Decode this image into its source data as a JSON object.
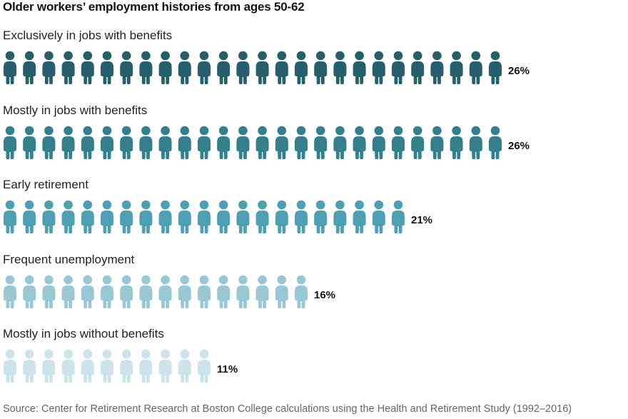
{
  "title": "Older workers’ employment histories from ages 50-62",
  "source": "Source: Center for Retirement Research at Boston College calculations using the Health and Retirement Study (1992–2016)",
  "chart_data": {
    "type": "pictograph",
    "title": "Older workers’ employment histories from ages 50-62",
    "categories": [
      "Exclusively in jobs with benefits",
      "Mostly in jobs with benefits",
      "Early retirement",
      "Frequent unemployment",
      "Mostly in jobs without benefits"
    ],
    "values": [
      26,
      26,
      21,
      16,
      11
    ],
    "value_labels": [
      "26%",
      "26%",
      "21%",
      "16%",
      "11%"
    ],
    "series": [
      {
        "label": "Exclusively in jobs with benefits",
        "value": 26,
        "value_label": "26%",
        "color": "#245f6b"
      },
      {
        "label": "Mostly in jobs with benefits",
        "value": 26,
        "value_label": "26%",
        "color": "#327f8e"
      },
      {
        "label": "Early retirement",
        "value": 21,
        "value_label": "21%",
        "color": "#4d9fb3"
      },
      {
        "label": "Frequent unemployment",
        "value": 16,
        "value_label": "16%",
        "color": "#99c8d5"
      },
      {
        "label": "Mostly in jobs without benefits",
        "value": 11,
        "value_label": "11%",
        "color": "#cde3ec"
      }
    ],
    "unit": "%",
    "icon": "person-icon",
    "grid": false,
    "legend": "none"
  }
}
